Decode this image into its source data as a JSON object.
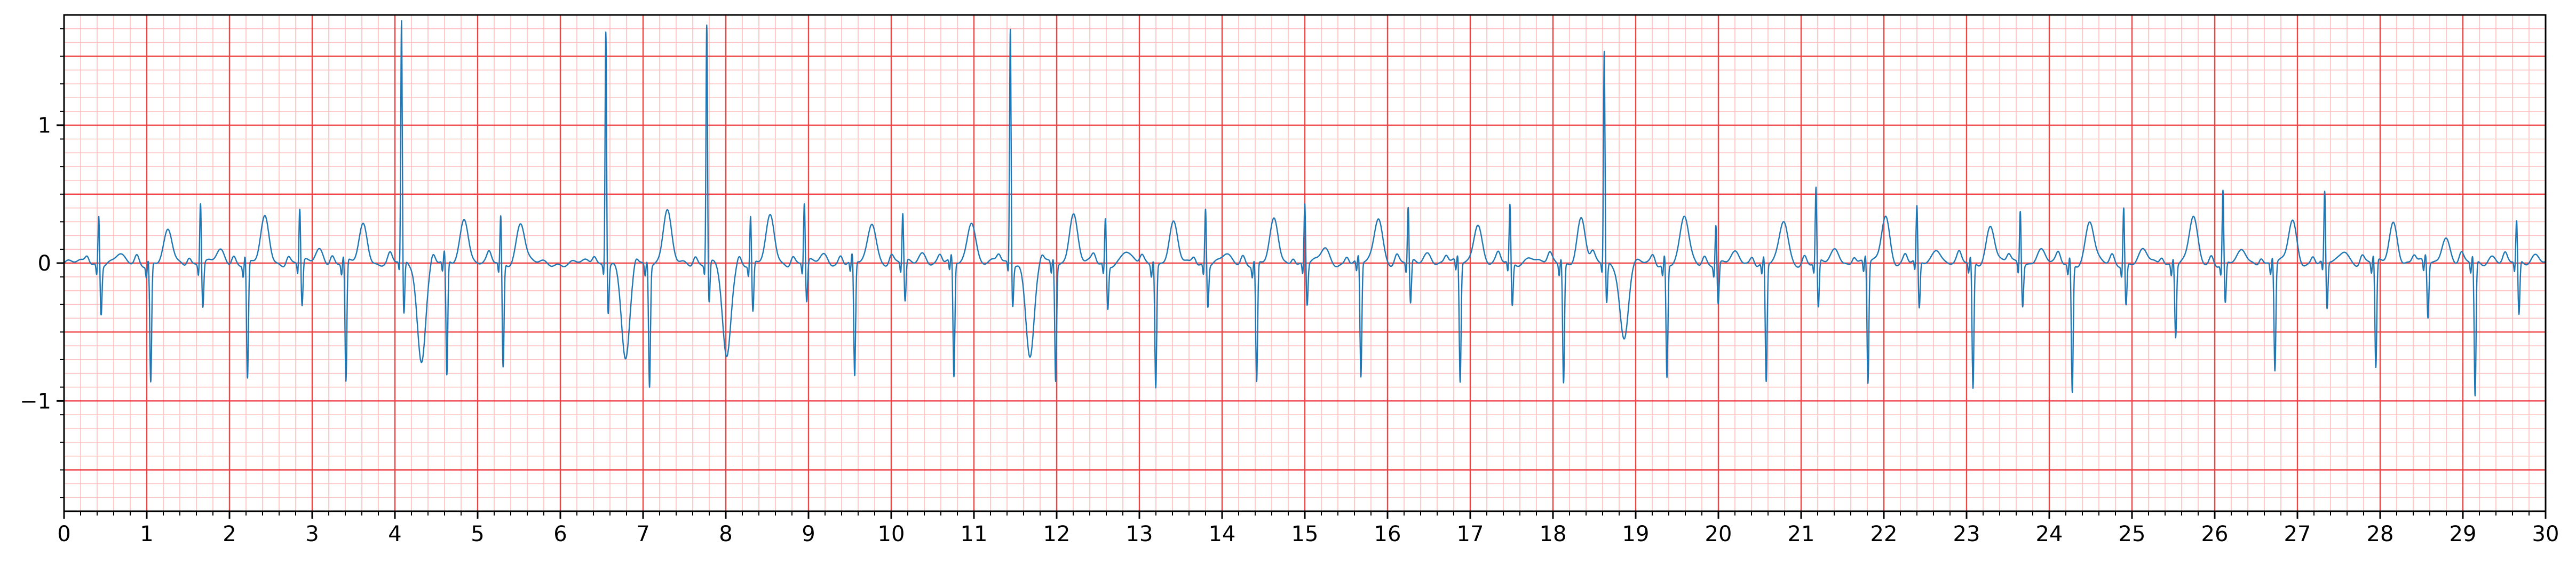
{
  "chart_data": {
    "type": "line",
    "title": "",
    "xlabel": "",
    "ylabel": "",
    "xlim": [
      0,
      30
    ],
    "ylim": [
      -1.8,
      1.8
    ],
    "x_ticks": [
      0,
      1,
      2,
      3,
      4,
      5,
      6,
      7,
      8,
      9,
      10,
      11,
      12,
      13,
      14,
      15,
      16,
      17,
      18,
      19,
      20,
      21,
      22,
      23,
      24,
      25,
      26,
      27,
      28,
      29,
      30
    ],
    "y_ticks": [
      -1,
      0,
      1
    ],
    "y_tick_labels": [
      "−1",
      "0",
      "1"
    ],
    "grid": {
      "major_x_step": 1,
      "minor_x_step": 0.2,
      "major_y_step": 0.5,
      "minor_y_step": 0.1
    },
    "colors": {
      "trace": "#1f77b4",
      "major_grid": "#ee4444",
      "minor_grid": "#ffc0c0"
    },
    "series": [
      {
        "beats": [
          {
            "t": 0.42,
            "r": 0.37,
            "s": -0.35,
            "t_amp": 0.05
          },
          {
            "t": 1.02,
            "r": 0.05,
            "s": -0.86,
            "t_amp": 0.22
          },
          {
            "t": 1.65,
            "r": 0.46,
            "s": -0.32,
            "t_amp": 0.08
          },
          {
            "t": 2.19,
            "r": 0.08,
            "s": -0.84,
            "t_amp": 0.32
          },
          {
            "t": 2.85,
            "r": 0.4,
            "s": -0.33,
            "t_amp": 0.1
          },
          {
            "t": 3.38,
            "r": 0.06,
            "s": -0.88,
            "t_amp": 0.28
          },
          {
            "t": 4.08,
            "r": 1.75,
            "s": -0.4,
            "t_amp": -0.7
          },
          {
            "t": 4.6,
            "r": 0.08,
            "s": -0.84,
            "t_amp": 0.34
          },
          {
            "t": 5.28,
            "r": 0.36,
            "s": -0.76,
            "t_amp": 0.3
          },
          {
            "t": 6.55,
            "r": 1.72,
            "s": -0.35,
            "t_amp": -0.72
          },
          {
            "t": 7.05,
            "r": 0.05,
            "s": -0.87,
            "t_amp": 0.37
          },
          {
            "t": 7.77,
            "r": 1.75,
            "s": -0.3,
            "t_amp": -0.7
          },
          {
            "t": 8.3,
            "r": 0.36,
            "s": -0.36,
            "t_amp": 0.33
          },
          {
            "t": 8.95,
            "r": 0.44,
            "s": -0.3,
            "t_amp": 0.06
          },
          {
            "t": 9.53,
            "r": 0.06,
            "s": -0.84,
            "t_amp": 0.3
          },
          {
            "t": 10.14,
            "r": 0.36,
            "s": -0.3,
            "t_amp": 0.08
          },
          {
            "t": 10.73,
            "r": 0.05,
            "s": -0.84,
            "t_amp": 0.32
          },
          {
            "t": 11.44,
            "r": 1.72,
            "s": -0.3,
            "t_amp": -0.68
          },
          {
            "t": 11.96,
            "r": 0.05,
            "s": -0.84,
            "t_amp": 0.36
          },
          {
            "t": 12.59,
            "r": 0.34,
            "s": -0.32,
            "t_amp": 0.08
          },
          {
            "t": 13.17,
            "r": 0.06,
            "s": -0.88,
            "t_amp": 0.28
          },
          {
            "t": 13.8,
            "r": 0.42,
            "s": -0.3,
            "t_amp": 0.05
          },
          {
            "t": 14.39,
            "r": 0.05,
            "s": -0.86,
            "t_amp": 0.3
          },
          {
            "t": 15.0,
            "r": 0.45,
            "s": -0.3,
            "t_amp": 0.1
          },
          {
            "t": 15.65,
            "r": 0.05,
            "s": -0.84,
            "t_amp": 0.34
          },
          {
            "t": 16.25,
            "r": 0.4,
            "s": -0.32,
            "t_amp": 0.08
          },
          {
            "t": 16.85,
            "r": 0.05,
            "s": -0.87,
            "t_amp": 0.3
          },
          {
            "t": 17.48,
            "r": 0.42,
            "s": -0.32,
            "t_amp": 0.06
          },
          {
            "t": 18.1,
            "r": 0.06,
            "s": -0.86,
            "t_amp": 0.32
          },
          {
            "t": 18.62,
            "r": 1.55,
            "s": -0.3,
            "t_amp": -0.55
          },
          {
            "t": 19.35,
            "r": 0.08,
            "s": -0.82,
            "t_amp": 0.33
          },
          {
            "t": 19.97,
            "r": 0.3,
            "s": -0.3,
            "t_amp": 0.06
          },
          {
            "t": 20.55,
            "r": 0.06,
            "s": -0.86,
            "t_amp": 0.3
          },
          {
            "t": 21.18,
            "r": 0.55,
            "s": -0.35,
            "t_amp": 0.1
          },
          {
            "t": 21.78,
            "r": 0.06,
            "s": -0.88,
            "t_amp": 0.35
          },
          {
            "t": 22.4,
            "r": 0.4,
            "s": -0.35,
            "t_amp": 0.12
          },
          {
            "t": 23.05,
            "r": 0.05,
            "s": -0.92,
            "t_amp": 0.28
          },
          {
            "t": 23.65,
            "r": 0.4,
            "s": -0.3,
            "t_amp": 0.1
          },
          {
            "t": 24.25,
            "r": 0.06,
            "s": -0.93,
            "t_amp": 0.3
          },
          {
            "t": 24.9,
            "r": 0.43,
            "s": -0.3,
            "t_amp": 0.08
          },
          {
            "t": 25.5,
            "r": 0.06,
            "s": -0.52,
            "t_amp": 0.32
          },
          {
            "t": 26.1,
            "r": 0.54,
            "s": -0.3,
            "t_amp": 0.08
          },
          {
            "t": 26.7,
            "r": 0.06,
            "s": -0.78,
            "t_amp": 0.3
          },
          {
            "t": 27.33,
            "r": 0.51,
            "s": -0.35,
            "t_amp": 0.1
          },
          {
            "t": 27.92,
            "r": 0.06,
            "s": -0.78,
            "t_amp": 0.3
          },
          {
            "t": 28.55,
            "r": 0.06,
            "s": -0.4,
            "t_amp": 0.2
          },
          {
            "t": 29.12,
            "r": 0.06,
            "s": -0.98,
            "t_amp": 0.06
          },
          {
            "t": 29.65,
            "r": 0.3,
            "s": -0.4,
            "t_amp": 0.08
          }
        ]
      }
    ]
  }
}
